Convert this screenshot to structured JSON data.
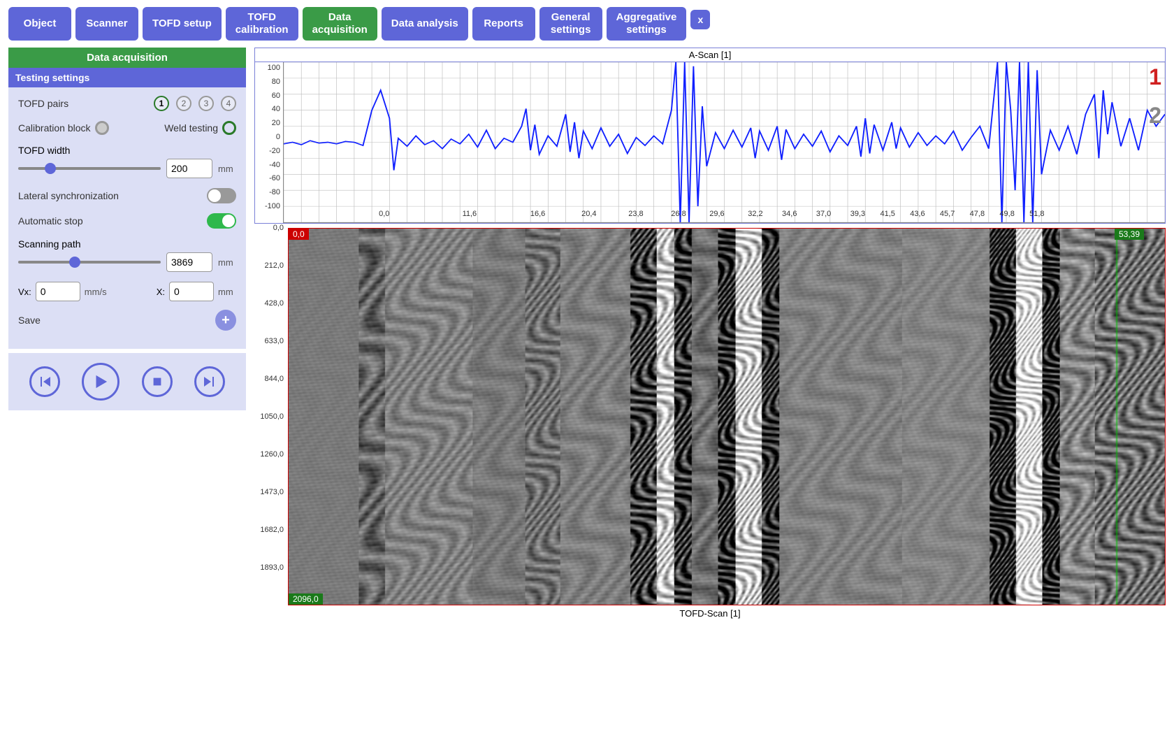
{
  "nav": {
    "items": [
      {
        "label": "Object",
        "active": false
      },
      {
        "label": "Scanner",
        "active": false
      },
      {
        "label": "TOFD setup",
        "active": false
      },
      {
        "label": "TOFD calibration",
        "active": false,
        "twoline": true,
        "l1": "TOFD",
        "l2": "calibration"
      },
      {
        "label": "Data acquisition",
        "active": true,
        "twoline": true,
        "l1": "Data",
        "l2": "acquisition"
      },
      {
        "label": "Data analysis",
        "active": false
      },
      {
        "label": "Reports",
        "active": false
      },
      {
        "label": "General settings",
        "active": false,
        "twoline": true,
        "l1": "General",
        "l2": "settings"
      },
      {
        "label": "Aggregative settings",
        "active": false,
        "twoline": true,
        "l1": "Aggregative",
        "l2": "settings"
      }
    ],
    "close": "x"
  },
  "sidebar": {
    "title": "Data acquisition",
    "subtitle": "Testing settings",
    "tofd_pairs_label": "TOFD pairs",
    "pairs": [
      "1",
      "2",
      "3",
      "4"
    ],
    "pair_selected": 0,
    "calibration_label": "Calibration block",
    "weld_label": "Weld testing",
    "width_label": "TOFD width",
    "width_value": "200",
    "width_unit": "mm",
    "width_slider": {
      "min": 0,
      "max": 1000,
      "value": 200
    },
    "lateral_label": "Lateral synchronization",
    "lateral_on": false,
    "auto_label": "Automatic stop",
    "auto_on": true,
    "scan_label": "Scanning path",
    "scan_value": "3869",
    "scan_unit": "mm",
    "scan_slider": {
      "min": 0,
      "max": 10000,
      "value": 3869
    },
    "vx_label": "Vx:",
    "vx_value": "0",
    "vx_unit": "mm/s",
    "x_label": "X:",
    "x_value": "0",
    "x_unit": "mm",
    "save_label": "Save"
  },
  "ascan": {
    "title": "A-Scan [1]",
    "ylim": [
      -100,
      100
    ],
    "ytick_step": 20,
    "yticks": [
      "100",
      "80",
      "60",
      "40",
      "20",
      "0",
      "-20",
      "-40",
      "-60",
      "-80",
      "-100"
    ],
    "xticks": [
      {
        "pos": 8.5,
        "label": "0,0"
      },
      {
        "pos": 18.5,
        "label": "11,6"
      },
      {
        "pos": 26.5,
        "label": "16,6"
      },
      {
        "pos": 32.5,
        "label": "20,4"
      },
      {
        "pos": 38,
        "label": "23,8"
      },
      {
        "pos": 43,
        "label": "26,8"
      },
      {
        "pos": 47.5,
        "label": "29,6"
      },
      {
        "pos": 52,
        "label": "32,2"
      },
      {
        "pos": 56,
        "label": "34,6"
      },
      {
        "pos": 60,
        "label": "37,0"
      },
      {
        "pos": 64,
        "label": "39,3"
      },
      {
        "pos": 67.5,
        "label": "41,5"
      },
      {
        "pos": 71,
        "label": "43,6"
      },
      {
        "pos": 74.5,
        "label": "45,7"
      },
      {
        "pos": 78,
        "label": "47,8"
      },
      {
        "pos": 81.5,
        "label": "49,8"
      },
      {
        "pos": 85,
        "label": "51,8"
      }
    ],
    "line_color": "#1020ff",
    "grid_color": "#bbbbbb",
    "data": [
      [
        0,
        -2
      ],
      [
        1,
        0
      ],
      [
        2,
        -3
      ],
      [
        3,
        2
      ],
      [
        4,
        -1
      ],
      [
        5,
        0
      ],
      [
        6,
        -2
      ],
      [
        7,
        1
      ],
      [
        8,
        0
      ],
      [
        9,
        -4
      ],
      [
        10,
        40
      ],
      [
        11,
        65
      ],
      [
        12,
        30
      ],
      [
        12.5,
        -35
      ],
      [
        13,
        5
      ],
      [
        14,
        -5
      ],
      [
        15,
        8
      ],
      [
        16,
        -3
      ],
      [
        17,
        2
      ],
      [
        18,
        -8
      ],
      [
        19,
        4
      ],
      [
        20,
        -2
      ],
      [
        21,
        10
      ],
      [
        22,
        -6
      ],
      [
        23,
        15
      ],
      [
        24,
        -8
      ],
      [
        25,
        5
      ],
      [
        26,
        0
      ],
      [
        27,
        20
      ],
      [
        27.5,
        42
      ],
      [
        28,
        -10
      ],
      [
        28.5,
        22
      ],
      [
        29,
        -15
      ],
      [
        30,
        8
      ],
      [
        31,
        -5
      ],
      [
        32,
        35
      ],
      [
        32.5,
        -12
      ],
      [
        33,
        25
      ],
      [
        33.5,
        -20
      ],
      [
        34,
        14
      ],
      [
        35,
        -8
      ],
      [
        36,
        18
      ],
      [
        37,
        -5
      ],
      [
        38,
        10
      ],
      [
        39,
        -14
      ],
      [
        40,
        6
      ],
      [
        41,
        -4
      ],
      [
        42,
        8
      ],
      [
        43,
        -2
      ],
      [
        44,
        40
      ],
      [
        44.5,
        100
      ],
      [
        45,
        -100
      ],
      [
        45.5,
        100
      ],
      [
        46,
        -100
      ],
      [
        46.5,
        95
      ],
      [
        47,
        -80
      ],
      [
        47.5,
        45
      ],
      [
        48,
        -30
      ],
      [
        49,
        12
      ],
      [
        50,
        -8
      ],
      [
        51,
        15
      ],
      [
        52,
        -6
      ],
      [
        53,
        18
      ],
      [
        53.5,
        -20
      ],
      [
        54,
        14
      ],
      [
        55,
        -10
      ],
      [
        56,
        20
      ],
      [
        56.5,
        -22
      ],
      [
        57,
        16
      ],
      [
        58,
        -8
      ],
      [
        59,
        10
      ],
      [
        60,
        -5
      ],
      [
        61,
        14
      ],
      [
        62,
        -12
      ],
      [
        63,
        8
      ],
      [
        64,
        -4
      ],
      [
        65,
        20
      ],
      [
        65.5,
        -18
      ],
      [
        66,
        30
      ],
      [
        66.5,
        -14
      ],
      [
        67,
        22
      ],
      [
        68,
        -10
      ],
      [
        69,
        25
      ],
      [
        69.5,
        -8
      ],
      [
        70,
        18
      ],
      [
        71,
        -6
      ],
      [
        72,
        12
      ],
      [
        73,
        -4
      ],
      [
        74,
        8
      ],
      [
        75,
        -2
      ],
      [
        76,
        14
      ],
      [
        77,
        -10
      ],
      [
        78,
        6
      ],
      [
        79,
        20
      ],
      [
        80,
        -8
      ],
      [
        81,
        100
      ],
      [
        81.5,
        -100
      ],
      [
        82,
        100
      ],
      [
        82.5,
        40
      ],
      [
        83,
        -60
      ],
      [
        83.5,
        100
      ],
      [
        84,
        -100
      ],
      [
        84.5,
        100
      ],
      [
        85,
        -100
      ],
      [
        85.5,
        90
      ],
      [
        86,
        -40
      ],
      [
        87,
        15
      ],
      [
        88,
        -10
      ],
      [
        89,
        20
      ],
      [
        90,
        -15
      ],
      [
        91,
        35
      ],
      [
        92,
        60
      ],
      [
        92.5,
        -20
      ],
      [
        93,
        65
      ],
      [
        93.5,
        10
      ],
      [
        94,
        50
      ],
      [
        95,
        -5
      ],
      [
        96,
        30
      ],
      [
        97,
        -10
      ],
      [
        98,
        40
      ],
      [
        99,
        20
      ],
      [
        100,
        35
      ]
    ]
  },
  "tofd": {
    "title": "TOFD-Scan [1]",
    "yticks": [
      "0,0",
      "212,0",
      "428,0",
      "633,0",
      "844,0",
      "1050,0",
      "1260,0",
      "1473,0",
      "1682,0",
      "1893,0"
    ],
    "badge_tl": "0,0",
    "badge_tr": "53,39",
    "badge_bl": "2096,0",
    "bands": [
      {
        "x": 0,
        "w": 8,
        "base": 122,
        "var": 4
      },
      {
        "x": 8,
        "w": 3,
        "base": 100,
        "var": 60
      },
      {
        "x": 11,
        "w": 10,
        "base": 128,
        "var": 35,
        "freq": 3
      },
      {
        "x": 21,
        "w": 6,
        "base": 120,
        "var": 20
      },
      {
        "x": 27,
        "w": 4,
        "base": 110,
        "var": 55,
        "freq": 4
      },
      {
        "x": 31,
        "w": 8,
        "base": 125,
        "var": 25
      },
      {
        "x": 39,
        "w": 3,
        "base": 60,
        "var": 120,
        "freq": 5
      },
      {
        "x": 42,
        "w": 2,
        "base": 200,
        "var": 100,
        "freq": 5
      },
      {
        "x": 44,
        "w": 2,
        "base": 50,
        "var": 120,
        "freq": 5
      },
      {
        "x": 46,
        "w": 3,
        "base": 110,
        "var": 40
      },
      {
        "x": 49,
        "w": 2,
        "base": 40,
        "var": 130,
        "freq": 6
      },
      {
        "x": 51,
        "w": 3,
        "base": 200,
        "var": 110,
        "freq": 6
      },
      {
        "x": 54,
        "w": 2,
        "base": 50,
        "var": 110,
        "freq": 6
      },
      {
        "x": 56,
        "w": 14,
        "base": 128,
        "var": 20
      },
      {
        "x": 70,
        "w": 10,
        "base": 132,
        "var": 15
      },
      {
        "x": 80,
        "w": 3,
        "base": 30,
        "var": 140,
        "freq": 7
      },
      {
        "x": 83,
        "w": 3,
        "base": 220,
        "var": 100,
        "freq": 7
      },
      {
        "x": 86,
        "w": 2,
        "base": 30,
        "var": 130,
        "freq": 7
      },
      {
        "x": 88,
        "w": 4,
        "base": 130,
        "var": 60,
        "freq": 3
      },
      {
        "x": 92,
        "w": 8,
        "base": 110,
        "var": 80,
        "freq": 4
      }
    ]
  },
  "annotations": {
    "one": "1",
    "two": "2"
  },
  "colors": {
    "primary": "#5e66d8",
    "active": "#3a9b47",
    "panel_bg": "#dcdff5",
    "toggle_on": "#2fb84c",
    "toggle_off": "#999999",
    "badge_red": "#c00000",
    "badge_green": "#1a7a1a"
  }
}
